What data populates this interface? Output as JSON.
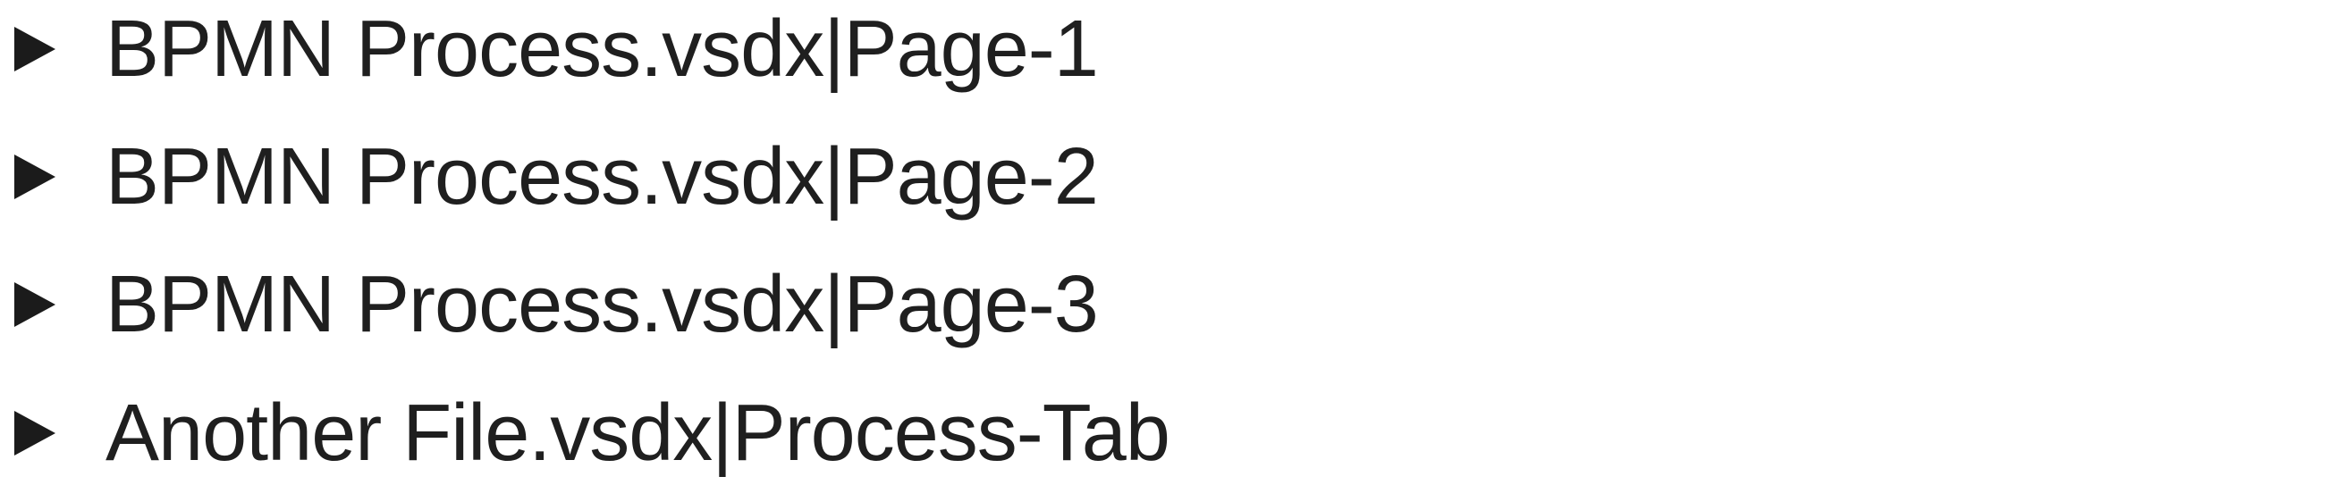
{
  "tree": {
    "items": [
      {
        "label": "BPMN Process.vsdx|Page-1",
        "icon": "collapsed-triangle-icon"
      },
      {
        "label": "BPMN Process.vsdx|Page-2",
        "icon": "collapsed-triangle-icon"
      },
      {
        "label": "BPMN Process.vsdx|Page-3",
        "icon": "collapsed-triangle-icon"
      },
      {
        "label": "Another File.vsdx|Process-Tab",
        "icon": "collapsed-triangle-icon"
      }
    ]
  }
}
